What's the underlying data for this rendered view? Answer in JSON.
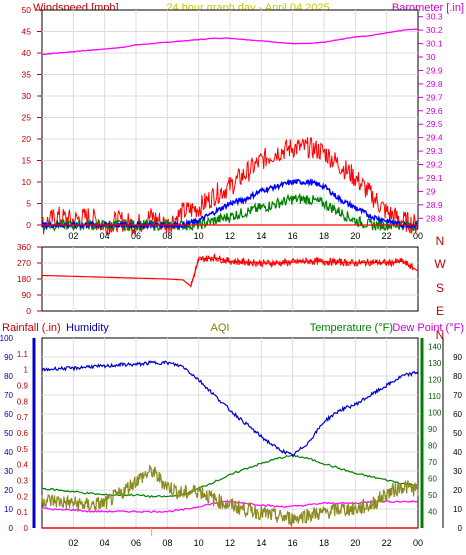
{
  "header": {
    "left_title": "Windspeed [mph]",
    "center_title": "24 hour graph day - April 04 2025",
    "right_title": "Barometer [.in]"
  },
  "colors": {
    "wind_gust": "#ff0000",
    "wind_avg": "#0000ff",
    "wind_low": "#008000",
    "barometer": "#ff00ff",
    "direction": "#ff0000",
    "rainfall": "#ff0000",
    "humidity": "#0000cc",
    "aqi": "#8b8b22",
    "temperature": "#008000",
    "dew_point": "#ff00ff",
    "grid": "#dddddd",
    "axis": "#000000"
  },
  "chart_data": [
    {
      "type": "line",
      "name": "wind-barometer",
      "title": "24 hour graph day - April 04 2025",
      "xlabel": "",
      "x_ticks": [
        "02",
        "04",
        "06",
        "08",
        "10",
        "12",
        "14",
        "16",
        "18",
        "20",
        "22",
        "00"
      ],
      "ylabel": "Windspeed [mph]",
      "ylim": [
        0,
        50
      ],
      "y_ticks": [
        "0",
        "5",
        "10",
        "15",
        "20",
        "25",
        "30",
        "35",
        "40",
        "45",
        "50"
      ],
      "y2label": "Barometer [.in]",
      "y2lim": [
        28.75,
        30.35
      ],
      "y2_ticks": [
        "28.8",
        "28.9",
        "29",
        "29.1",
        "29.2",
        "29.3",
        "29.4",
        "29.5",
        "29.6",
        "29.7",
        "29.8",
        "29.9",
        "30",
        "30.1",
        "30.2",
        "30.3"
      ],
      "grid": true,
      "x_hours": [
        0,
        1,
        2,
        3,
        4,
        5,
        6,
        7,
        8,
        9,
        10,
        11,
        12,
        13,
        14,
        15,
        16,
        17,
        18,
        19,
        20,
        21,
        22,
        23,
        24
      ],
      "series": [
        {
          "key": "gust",
          "axis": "left",
          "values": [
            0,
            2,
            1,
            2,
            0,
            1,
            0,
            2,
            0,
            3,
            4,
            7,
            9,
            12,
            15,
            17,
            18,
            18,
            17,
            14,
            11,
            7,
            3,
            1,
            0
          ]
        },
        {
          "key": "avg",
          "axis": "left",
          "values": [
            0,
            0,
            0,
            0,
            0,
            0,
            0,
            0,
            0,
            0,
            1,
            3,
            5,
            6,
            8,
            9,
            10,
            10,
            9,
            6,
            4,
            2,
            1,
            0,
            0
          ]
        },
        {
          "key": "low",
          "axis": "left",
          "values": [
            0,
            0,
            0,
            0,
            0,
            0,
            0,
            0,
            0,
            0,
            0,
            1,
            2,
            3,
            4,
            5,
            6,
            6,
            5,
            3,
            1,
            0,
            0,
            0,
            0
          ]
        },
        {
          "key": "baro",
          "axis": "right",
          "values": [
            30.02,
            30.03,
            30.04,
            30.05,
            30.06,
            30.07,
            30.09,
            30.1,
            30.11,
            30.12,
            30.13,
            30.14,
            30.14,
            30.13,
            30.12,
            30.11,
            30.1,
            30.1,
            30.11,
            30.13,
            30.15,
            30.16,
            30.18,
            30.2,
            30.21
          ]
        }
      ]
    },
    {
      "type": "line",
      "name": "wind-direction",
      "x_ticks": [
        "02",
        "04",
        "06",
        "08",
        "10",
        "12",
        "14",
        "16",
        "18",
        "20",
        "22",
        "00"
      ],
      "ylim": [
        0,
        360
      ],
      "y_ticks": [
        "0",
        "90",
        "180",
        "270",
        "360"
      ],
      "compass_labels": [
        "N",
        "W",
        "S",
        "E",
        "N"
      ],
      "grid": true,
      "x_hours": [
        0,
        2,
        4,
        6,
        8,
        9,
        9.5,
        10,
        11,
        12,
        13,
        14,
        15,
        16,
        17,
        18,
        19,
        20,
        21,
        22,
        23,
        24
      ],
      "series": [
        {
          "key": "dir",
          "values": [
            200,
            195,
            190,
            185,
            180,
            175,
            140,
            290,
            300,
            280,
            275,
            270,
            270,
            275,
            280,
            278,
            275,
            270,
            275,
            270,
            280,
            225
          ]
        }
      ]
    },
    {
      "type": "line",
      "name": "rain-humidity-aqi-temp",
      "x_ticks": [
        "02",
        "04",
        "06",
        "08",
        "10",
        "12",
        "14",
        "16",
        "18",
        "20",
        "22",
        "00"
      ],
      "y_left_title": "Rainfall (.in)",
      "rain_ylim": [
        0,
        1.2
      ],
      "rain_ticks": [
        "0",
        "0.1",
        "0.2",
        "0.3",
        "0.4",
        "0.5",
        "0.6",
        "0.7",
        "0.8",
        "0.9",
        "1",
        "1.1"
      ],
      "humidity_title": "Humidity",
      "humidity_ylim": [
        0,
        100
      ],
      "humidity_ticks": [
        "0",
        "10",
        "20",
        "30",
        "40",
        "50",
        "60",
        "70",
        "80",
        "90",
        "100"
      ],
      "aqi_title": "AQI",
      "temp_title": "Temperature (°F)",
      "dew_title": "Dew Point (°F)",
      "temp_ylim": [
        30,
        145
      ],
      "temp_ticks": [
        "40",
        "50",
        "60",
        "70",
        "80",
        "90",
        "100",
        "110",
        "120",
        "130",
        "140"
      ],
      "right_ylim": [
        0,
        100
      ],
      "right_ticks": [
        "0",
        "10",
        "20",
        "30",
        "40",
        "50",
        "60",
        "70",
        "80",
        "90"
      ],
      "grid": true,
      "x_hours": [
        0,
        1,
        2,
        3,
        4,
        5,
        6,
        7,
        8,
        9,
        10,
        11,
        12,
        13,
        14,
        15,
        16,
        17,
        18,
        19,
        20,
        21,
        22,
        23,
        24
      ],
      "series": [
        {
          "key": "humidity",
          "values": [
            83,
            84,
            84,
            85,
            85,
            86,
            86,
            87,
            87,
            85,
            78,
            70,
            62,
            55,
            48,
            42,
            38,
            45,
            56,
            62,
            65,
            70,
            75,
            80,
            82
          ]
        },
        {
          "key": "aqi",
          "values": [
            15,
            14,
            13,
            12,
            13,
            18,
            25,
            30,
            22,
            18,
            20,
            15,
            12,
            10,
            8,
            6,
            5,
            7,
            8,
            10,
            10,
            12,
            18,
            22,
            20
          ]
        },
        {
          "key": "temp",
          "values": [
            54,
            53,
            52,
            51,
            50,
            50,
            50,
            49,
            49,
            50,
            54,
            58,
            62,
            66,
            69,
            72,
            74,
            72,
            69,
            66,
            63,
            61,
            59,
            57,
            56
          ]
        },
        {
          "key": "dew",
          "values": [
            42,
            41,
            41,
            40,
            40,
            40,
            40,
            40,
            40,
            41,
            43,
            45,
            46,
            45,
            44,
            43,
            43,
            44,
            45,
            45,
            45,
            46,
            46,
            46,
            46
          ]
        },
        {
          "key": "rain",
          "values": [
            0,
            0,
            0,
            0,
            0,
            0,
            0,
            0,
            0,
            0,
            0,
            0,
            0,
            0,
            0,
            0,
            0,
            0,
            0,
            0,
            0,
            0,
            0,
            0,
            0
          ]
        }
      ]
    }
  ]
}
